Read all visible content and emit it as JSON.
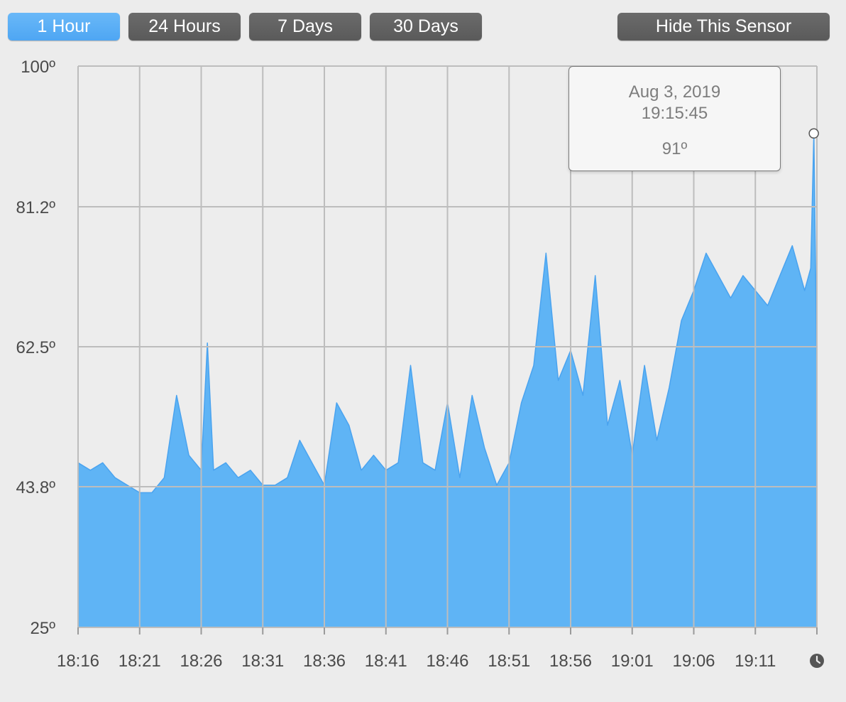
{
  "toolbar": {
    "ranges": [
      {
        "label": "1 Hour",
        "active": true
      },
      {
        "label": "24 Hours",
        "active": false
      },
      {
        "label": "7 Days",
        "active": false
      },
      {
        "label": "30 Days",
        "active": false
      }
    ],
    "hide_label": "Hide This Sensor"
  },
  "tooltip": {
    "date": "Aug 3, 2019",
    "time": "19:15:45",
    "value": "91º"
  },
  "icons": {
    "clock": "clock-icon"
  },
  "colors": {
    "active_button": "#5aaef5",
    "button": "#5f5f5f",
    "area_fill": "#5fb4f5",
    "area_line": "#4aa3ef",
    "grid": "#bdbdbd"
  },
  "chart_data": {
    "type": "area",
    "title": "",
    "xlabel": "",
    "ylabel": "",
    "ylim": [
      25,
      100
    ],
    "yticks": [
      {
        "value": 100,
        "label": "100º"
      },
      {
        "value": 81.2,
        "label": "81.2º"
      },
      {
        "value": 62.5,
        "label": "62.5º"
      },
      {
        "value": 43.8,
        "label": "43.8º"
      },
      {
        "value": 25,
        "label": "25º"
      }
    ],
    "xticks": [
      "18:16",
      "18:21",
      "18:26",
      "18:31",
      "18:36",
      "18:41",
      "18:46",
      "18:51",
      "18:56",
      "19:01",
      "19:06",
      "19:11"
    ],
    "xlim": [
      "18:16:00",
      "19:16:00"
    ],
    "grid": true,
    "highlight": {
      "x": "19:15:45",
      "y": 91
    },
    "series": [
      {
        "x": [
          "18:16",
          "18:17",
          "18:18",
          "18:19",
          "18:20",
          "18:21",
          "18:22",
          "18:23",
          "18:24",
          "18:24:30",
          "18:25",
          "18:26",
          "18:26:30",
          "18:27",
          "18:28",
          "18:29",
          "18:30",
          "18:31",
          "18:32",
          "18:33",
          "18:34",
          "18:35",
          "18:36",
          "18:37",
          "18:38",
          "18:39",
          "18:40",
          "18:41",
          "18:42",
          "18:43",
          "18:44",
          "18:45",
          "18:46",
          "18:47",
          "18:48",
          "18:49",
          "18:50",
          "18:51",
          "18:52",
          "18:53",
          "18:54",
          "18:55",
          "18:56",
          "18:57",
          "18:58",
          "18:59",
          "19:00",
          "19:01",
          "19:02",
          "19:03",
          "19:04",
          "19:05",
          "19:06",
          "19:07",
          "19:08",
          "19:09",
          "19:10",
          "19:11",
          "19:12",
          "19:13",
          "19:14",
          "19:15",
          "19:15:30",
          "19:15:45",
          "19:16"
        ],
        "y": [
          47,
          46,
          47,
          45,
          44,
          43,
          43,
          45,
          56,
          52,
          48,
          46,
          63,
          46,
          47,
          45,
          46,
          44,
          44,
          45,
          50,
          47,
          44,
          55,
          52,
          46,
          48,
          46,
          47,
          60,
          47,
          46,
          55,
          45,
          56,
          49,
          44,
          47,
          55,
          60,
          75,
          58,
          62,
          56,
          72,
          52,
          58,
          48,
          60,
          50,
          57,
          66,
          70,
          75,
          72,
          69,
          72,
          70,
          68,
          72,
          76,
          70,
          73,
          91,
          59
        ]
      }
    ]
  }
}
